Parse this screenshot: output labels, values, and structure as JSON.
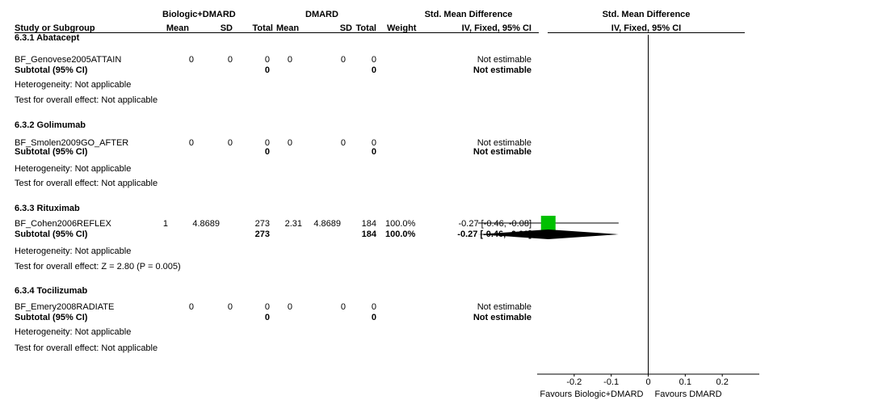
{
  "header": {
    "group1": "Biologic+DMARD",
    "group2": "DMARD",
    "effect_title": "Std. Mean Difference",
    "effect_sub": "IV, Fixed, 95% CI",
    "plot_title": "Std. Mean Difference",
    "plot_sub": "IV, Fixed, 95% CI",
    "study_col": "Study or Subgroup",
    "mean1": "Mean",
    "sd1": "SD",
    "total1": "Total",
    "mean2": "Mean",
    "sd2": "SD",
    "total2": "Total",
    "weight": "Weight"
  },
  "groups": [
    {
      "title": "6.3.1 Abatacept",
      "study": {
        "name": "BF_Genovese2005ATTAIN",
        "mean1": "0",
        "sd1": "0",
        "total1": "0",
        "mean2": "0",
        "sd2": "0",
        "total2": "0",
        "weight": "",
        "ci": "Not estimable"
      },
      "subtotal": {
        "label": "Subtotal (95% CI)",
        "total1": "0",
        "total2": "0",
        "weight": "",
        "ci": "Not estimable"
      },
      "heterogeneity": "Heterogeneity: Not applicable",
      "overall": "Test for overall effect: Not applicable"
    },
    {
      "title": "6.3.2 Golimumab",
      "study": {
        "name": "BF_Smolen2009GO_AFTER",
        "mean1": "0",
        "sd1": "0",
        "total1": "0",
        "mean2": "0",
        "sd2": "0",
        "total2": "0",
        "weight": "",
        "ci": "Not estimable"
      },
      "subtotal": {
        "label": "Subtotal (95% CI)",
        "total1": "0",
        "total2": "0",
        "weight": "",
        "ci": "Not estimable"
      },
      "heterogeneity": "Heterogeneity: Not applicable",
      "overall": "Test for overall effect: Not applicable"
    },
    {
      "title": "6.3.3 Rituximab",
      "study": {
        "name": "BF_Cohen2006REFLEX",
        "mean1": "1",
        "sd1": "4.8689",
        "total1": "273",
        "mean2": "2.31",
        "sd2": "4.8689",
        "total2": "184",
        "weight": "100.0%",
        "ci": "-0.27 [-0.46, -0.08]"
      },
      "subtotal": {
        "label": "Subtotal (95% CI)",
        "total1": "273",
        "total2": "184",
        "weight": "100.0%",
        "ci": "-0.27 [-0.46, -0.08]"
      },
      "heterogeneity": "Heterogeneity: Not applicable",
      "overall": "Test for overall effect: Z = 2.80 (P = 0.005)"
    },
    {
      "title": "6.3.4 Tocilizumab",
      "study": {
        "name": "BF_Emery2008RADIATE",
        "mean1": "0",
        "sd1": "0",
        "total1": "0",
        "mean2": "0",
        "sd2": "0",
        "total2": "0",
        "weight": "",
        "ci": "Not estimable"
      },
      "subtotal": {
        "label": "Subtotal (95% CI)",
        "total1": "0",
        "total2": "0",
        "weight": "",
        "ci": "Not estimable"
      },
      "heterogeneity": "Heterogeneity: Not applicable",
      "overall": "Test for overall effect: Not applicable"
    }
  ],
  "chart_data": {
    "type": "forest",
    "xlim": [
      -0.3,
      0.3
    ],
    "ticks": [
      -0.2,
      -0.1,
      0,
      0.1,
      0.2
    ],
    "tick_labels": [
      "-0.2",
      "-0.1",
      "0",
      "0.1",
      "0.2"
    ],
    "null_value": 0,
    "favours_left": "Favours Biologic+DMARD",
    "favours_right": "Favours DMARD",
    "estimates": [
      {
        "group": "6.3.3 Rituximab",
        "kind": "study",
        "estimate": -0.27,
        "lower": -0.46,
        "upper": -0.08,
        "weight": 100.0
      },
      {
        "group": "6.3.3 Rituximab",
        "kind": "subtotal",
        "estimate": -0.27,
        "lower": -0.46,
        "upper": -0.08
      }
    ],
    "colors": {
      "square": "#00c000",
      "diamond": "#000000",
      "line": "#000000"
    }
  }
}
